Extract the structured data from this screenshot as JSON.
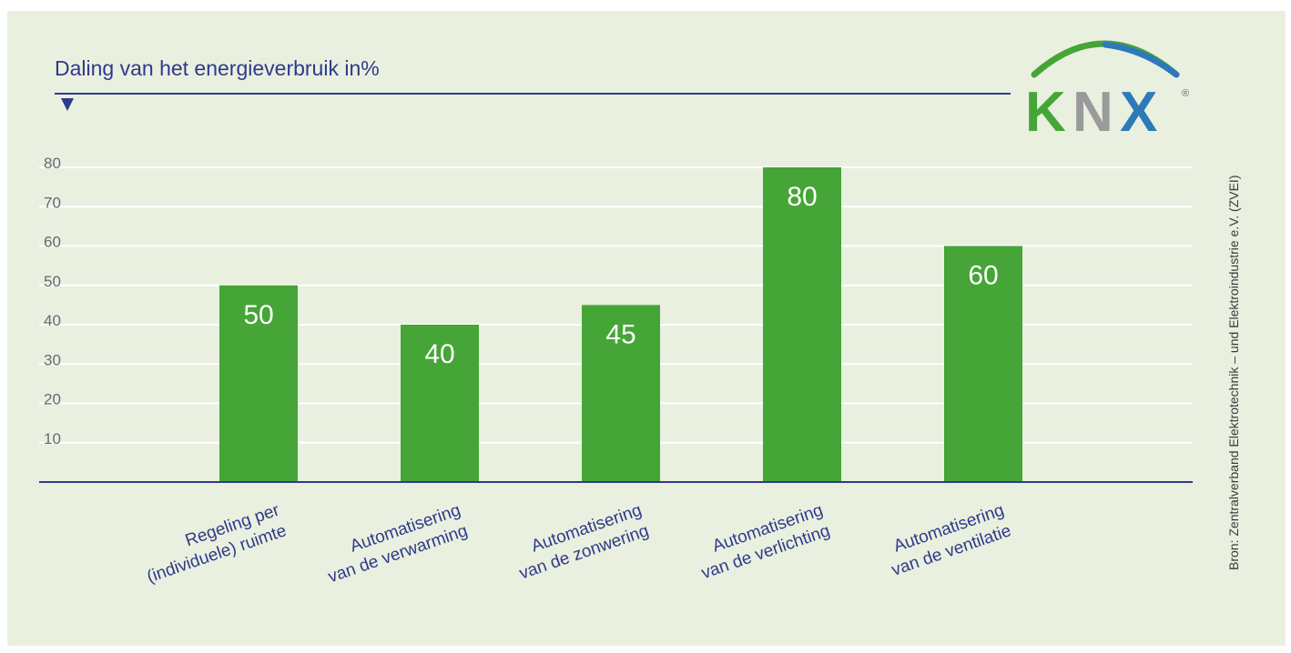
{
  "colors": {
    "background": "#eaf0df",
    "bar": "#45a536",
    "axis": "#2e3a8c",
    "grid": "#ffffff",
    "knx_k": "#45a536",
    "knx_n": "#9a9a9a",
    "knx_x": "#2e7ab8",
    "knx_arc_left": "#45a536",
    "knx_arc_right": "#2e7ab8"
  },
  "logo": {
    "text": "KNX",
    "k": "K",
    "n": "N",
    "x": "X",
    "registered": "®"
  },
  "source": "Bron: Zentralverband Elektrotechnik – und Elektroindustrie e.V. (ZVEI)",
  "chart_data": {
    "type": "bar",
    "title": "Daling van het energieverbruik in%",
    "categories": [
      [
        "Regeling per",
        "(individuele) ruimte"
      ],
      [
        "Automatisering",
        "van de verwarming"
      ],
      [
        "Automatisering",
        "van de zonwering"
      ],
      [
        "Automatisering",
        "van de verlichting"
      ],
      [
        "Automatisering",
        "van de ventilatie"
      ]
    ],
    "values": [
      50,
      40,
      45,
      80,
      60
    ],
    "data_labels": [
      "50",
      "40",
      "45",
      "80",
      "60"
    ],
    "yticks": [
      "10",
      "20",
      "30",
      "40",
      "50",
      "60",
      "70",
      "80"
    ],
    "ylim": [
      0,
      80
    ],
    "grid": true,
    "legend": "none"
  }
}
